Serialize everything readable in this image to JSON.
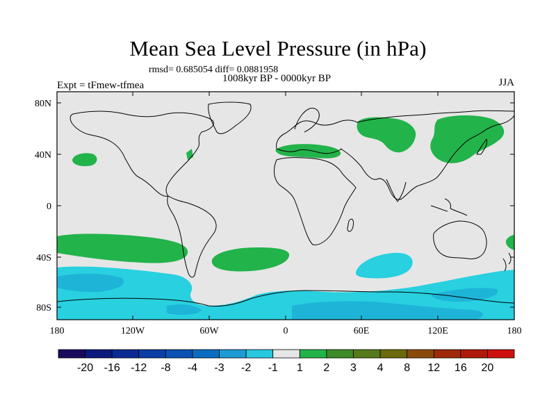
{
  "title": "Mean Sea Level Pressure (in hPa)",
  "stats_line": "rmsd= 0.685054 diff= 0.0881958",
  "period": "1008kyr BP - 0000kyr BP",
  "experiment": "Expt = tFmew-tfmea",
  "season": "JJA",
  "axes": {
    "y_ticks": [
      "80N",
      "40N",
      "0",
      "40S",
      "80S"
    ],
    "x_ticks": [
      "180",
      "120W",
      "60W",
      "0",
      "60E",
      "120E",
      "180"
    ]
  },
  "colorbar": {
    "labels": [
      "-20",
      "-16",
      "-12",
      "-8",
      "-4",
      "-3",
      "-2",
      "-1",
      "1",
      "2",
      "3",
      "4",
      "8",
      "12",
      "16",
      "20"
    ],
    "colors": [
      "#1a0a5e",
      "#0c1a7e",
      "#0a2a94",
      "#0a3ea6",
      "#0a52b4",
      "#0a6cc0",
      "#1e9ad2",
      "#28c8e0",
      "#e6e6e6",
      "#22b34a",
      "#3c8a28",
      "#567a1a",
      "#6a6a0a",
      "#8a4a0a",
      "#9e2a0a",
      "#b01a0a",
      "#d01010"
    ]
  },
  "colors": {
    "background_field": "#e6e6e6",
    "positive_1_2": "#22b34a",
    "negative_1_2": "#28d0e0",
    "negative_2_3": "#1eb4d8",
    "coast": "#000000"
  }
}
